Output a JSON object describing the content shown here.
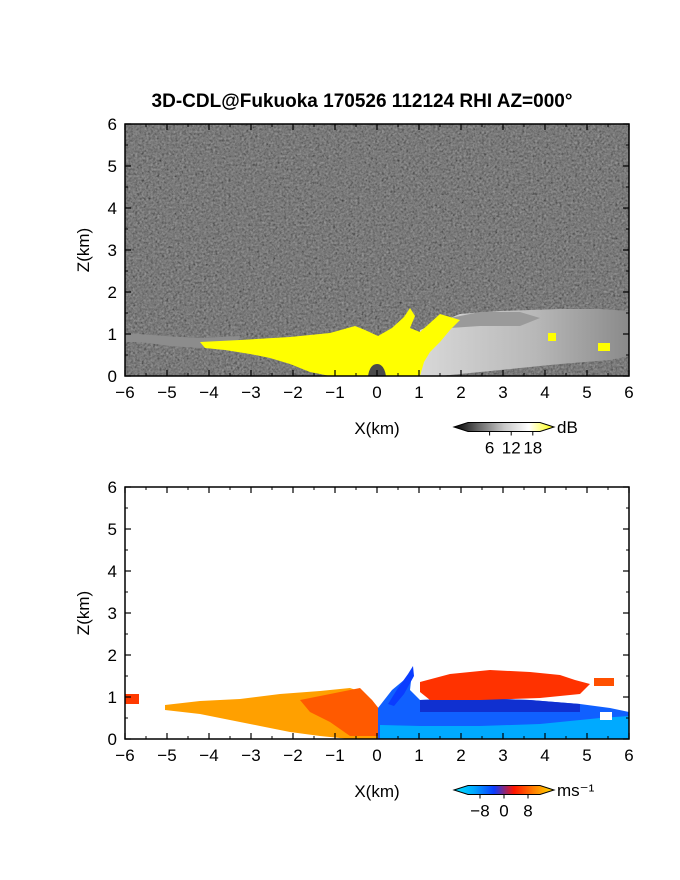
{
  "title": "3D-CDL@Fukuoka 170526 112124 RHI AZ=000°",
  "chart_data": [
    {
      "type": "heatmap",
      "xlabel": "X(km)",
      "ylabel": "Z(km)",
      "xlim": [
        -6,
        6
      ],
      "ylim": [
        0,
        6
      ],
      "xticks": [
        "−6",
        "−5",
        "−4",
        "−3",
        "−2",
        "−1",
        "0",
        "1",
        "2",
        "3",
        "4",
        "5",
        "6"
      ],
      "yticks": [
        "0",
        "1",
        "2",
        "3",
        "4",
        "5",
        "6"
      ],
      "colorbar": {
        "unit": "dB",
        "ticks": [
          "6",
          "12",
          "18"
        ],
        "tick_values": [
          6,
          12,
          18
        ],
        "range": [
          0,
          20
        ],
        "colors": [
          "#000000",
          "#6a6a6a",
          "#c8c8c8",
          "#ffffff",
          "#ffff00"
        ]
      },
      "regions": [
        {
          "x": [
            -6.0,
            -5.0
          ],
          "z": [
            0.75,
            1.0
          ],
          "level": "low"
        },
        {
          "x": [
            -5.0,
            -4.0
          ],
          "z": [
            0.6,
            0.85
          ],
          "level": "mid"
        },
        {
          "x": [
            -4.0,
            -1.0
          ],
          "z": [
            0.1,
            0.85
          ],
          "level": "saturated"
        },
        {
          "x": [
            -1.0,
            1.0
          ],
          "z": [
            0.0,
            1.6
          ],
          "level": "saturated"
        },
        {
          "x": [
            1.0,
            6.0
          ],
          "z": [
            0.0,
            1.55
          ],
          "level": "high"
        }
      ]
    },
    {
      "type": "heatmap",
      "xlabel": "X(km)",
      "ylabel": "Z(km)",
      "xlim": [
        -6,
        6
      ],
      "ylim": [
        0,
        6
      ],
      "xticks": [
        "−6",
        "−5",
        "−4",
        "−3",
        "−2",
        "−1",
        "0",
        "1",
        "2",
        "3",
        "4",
        "5",
        "6"
      ],
      "yticks": [
        "0",
        "1",
        "2",
        "3",
        "4",
        "5",
        "6"
      ],
      "colorbar": {
        "unit": "ms⁻¹",
        "ticks": [
          "−8",
          "0",
          "8"
        ],
        "tick_values": [
          -8,
          0,
          8
        ],
        "range": [
          -12,
          12
        ],
        "colors": [
          "#00e5ff",
          "#00a8ff",
          "#0a3cff",
          "#ff1400",
          "#ff8000",
          "#ffdd00"
        ]
      },
      "regions": [
        {
          "x": [
            -6.0,
            -5.8
          ],
          "z": [
            0.85,
            1.05
          ],
          "velocity": 5
        },
        {
          "x": [
            -5.0,
            -0.5
          ],
          "z": [
            0.1,
            0.8
          ],
          "velocity": 8
        },
        {
          "x": [
            -1.0,
            0.0
          ],
          "z": [
            0.1,
            1.2
          ],
          "velocity": 4
        },
        {
          "x": [
            0.0,
            6.0
          ],
          "z": [
            0.0,
            0.9
          ],
          "velocity": -8
        },
        {
          "x": [
            1.0,
            4.7
          ],
          "z": [
            0.9,
            1.6
          ],
          "velocity": 3
        }
      ]
    }
  ]
}
